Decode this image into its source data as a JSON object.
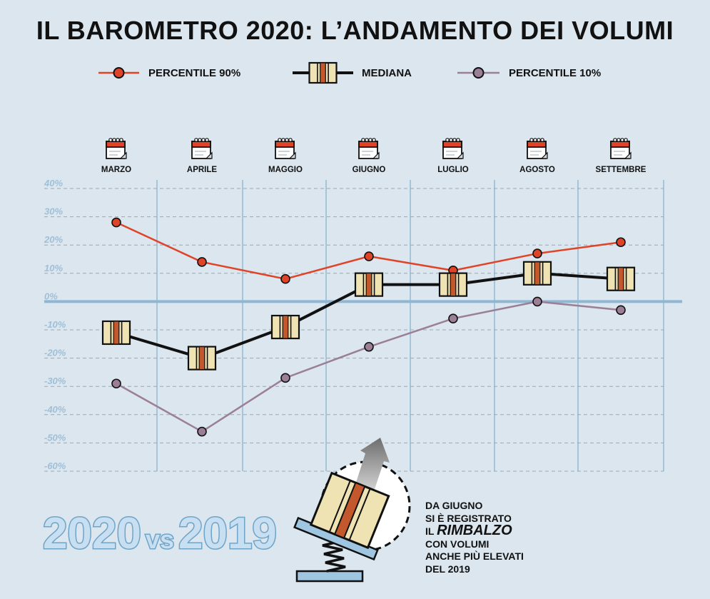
{
  "title": "IL BAROMETRO 2020: L’ANDAMENTO DEI VOLUMI",
  "legend": [
    {
      "label": "PERCENTILE 90%",
      "color": "#e04428",
      "marker": "circle"
    },
    {
      "label": "MEDIANA",
      "color": "#111111",
      "marker": "box"
    },
    {
      "label": "PERCENTILE 10%",
      "color": "#9b7f96",
      "marker": "circle"
    }
  ],
  "chart_data": {
    "type": "line",
    "categories": [
      "MARZO",
      "APRILE",
      "MAGGIO",
      "GIUGNO",
      "LUGLIO",
      "AGOSTO",
      "SETTEMBRE"
    ],
    "y_ticks": [
      "40%",
      "30%",
      "20%",
      "10%",
      "0%",
      "-10%",
      "-20%",
      "-30%",
      "-40%",
      "-50%",
      "-60%"
    ],
    "ylim": [
      -60,
      40
    ],
    "grid": true,
    "legend_position": "top",
    "series": [
      {
        "name": "PERCENTILE 90%",
        "color": "#e04428",
        "marker": "circle",
        "values": [
          28,
          14,
          8,
          16,
          11,
          17,
          21
        ]
      },
      {
        "name": "MEDIANA",
        "color": "#111111",
        "marker": "box",
        "values": [
          -11,
          -20,
          -9,
          6,
          6,
          10,
          8
        ]
      },
      {
        "name": "PERCENTILE 10%",
        "color": "#9b7f96",
        "marker": "circle",
        "values": [
          -29,
          -46,
          -27,
          -16,
          -6,
          0,
          -3
        ]
      }
    ]
  },
  "comparison": {
    "left": "2020",
    "middle": "vs",
    "right": "2019"
  },
  "note": {
    "line1": "DA GIUGNO",
    "line2": "SI È REGISTRATO",
    "line3_prefix": "IL",
    "line3_em": "RIMBALZO",
    "line4": "CON VOLUMI",
    "line5": "ANCHE PIÙ ELEVATI",
    "line6": "DEL 2019"
  },
  "icons": {
    "calendar": "calendar-icon",
    "spring": "spring-box-icon"
  }
}
